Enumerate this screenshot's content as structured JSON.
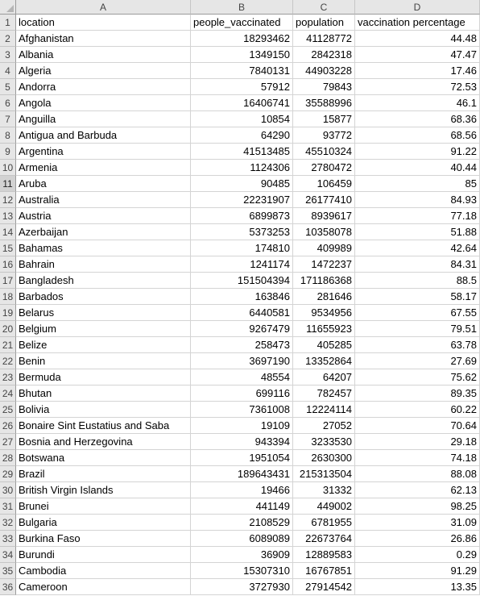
{
  "columns": [
    "A",
    "B",
    "C",
    "D"
  ],
  "selected_row": 11,
  "rows": [
    [
      "location",
      "people_vaccinated",
      "population",
      "vaccination percentage"
    ],
    [
      "Afghanistan",
      "18293462",
      "41128772",
      "44.48"
    ],
    [
      "Albania",
      "1349150",
      "2842318",
      "47.47"
    ],
    [
      "Algeria",
      "7840131",
      "44903228",
      "17.46"
    ],
    [
      "Andorra",
      "57912",
      "79843",
      "72.53"
    ],
    [
      "Angola",
      "16406741",
      "35588996",
      "46.1"
    ],
    [
      "Anguilla",
      "10854",
      "15877",
      "68.36"
    ],
    [
      "Antigua and Barbuda",
      "64290",
      "93772",
      "68.56"
    ],
    [
      "Argentina",
      "41513485",
      "45510324",
      "91.22"
    ],
    [
      "Armenia",
      "1124306",
      "2780472",
      "40.44"
    ],
    [
      "Aruba",
      "90485",
      "106459",
      "85"
    ],
    [
      "Australia",
      "22231907",
      "26177410",
      "84.93"
    ],
    [
      "Austria",
      "6899873",
      "8939617",
      "77.18"
    ],
    [
      "Azerbaijan",
      "5373253",
      "10358078",
      "51.88"
    ],
    [
      "Bahamas",
      "174810",
      "409989",
      "42.64"
    ],
    [
      "Bahrain",
      "1241174",
      "1472237",
      "84.31"
    ],
    [
      "Bangladesh",
      "151504394",
      "171186368",
      "88.5"
    ],
    [
      "Barbados",
      "163846",
      "281646",
      "58.17"
    ],
    [
      "Belarus",
      "6440581",
      "9534956",
      "67.55"
    ],
    [
      "Belgium",
      "9267479",
      "11655923",
      "79.51"
    ],
    [
      "Belize",
      "258473",
      "405285",
      "63.78"
    ],
    [
      "Benin",
      "3697190",
      "13352864",
      "27.69"
    ],
    [
      "Bermuda",
      "48554",
      "64207",
      "75.62"
    ],
    [
      "Bhutan",
      "699116",
      "782457",
      "89.35"
    ],
    [
      "Bolivia",
      "7361008",
      "12224114",
      "60.22"
    ],
    [
      "Bonaire Sint Eustatius and Saba",
      "19109",
      "27052",
      "70.64"
    ],
    [
      "Bosnia and Herzegovina",
      "943394",
      "3233530",
      "29.18"
    ],
    [
      "Botswana",
      "1951054",
      "2630300",
      "74.18"
    ],
    [
      "Brazil",
      "189643431",
      "215313504",
      "88.08"
    ],
    [
      "British Virgin Islands",
      "19466",
      "31332",
      "62.13"
    ],
    [
      "Brunei",
      "441149",
      "449002",
      "98.25"
    ],
    [
      "Bulgaria",
      "2108529",
      "6781955",
      "31.09"
    ],
    [
      "Burkina Faso",
      "6089089",
      "22673764",
      "26.86"
    ],
    [
      "Burundi",
      "36909",
      "12889583",
      "0.29"
    ],
    [
      "Cambodia",
      "15307310",
      "16767851",
      "91.29"
    ],
    [
      "Cameroon",
      "3727930",
      "27914542",
      "13.35"
    ]
  ]
}
